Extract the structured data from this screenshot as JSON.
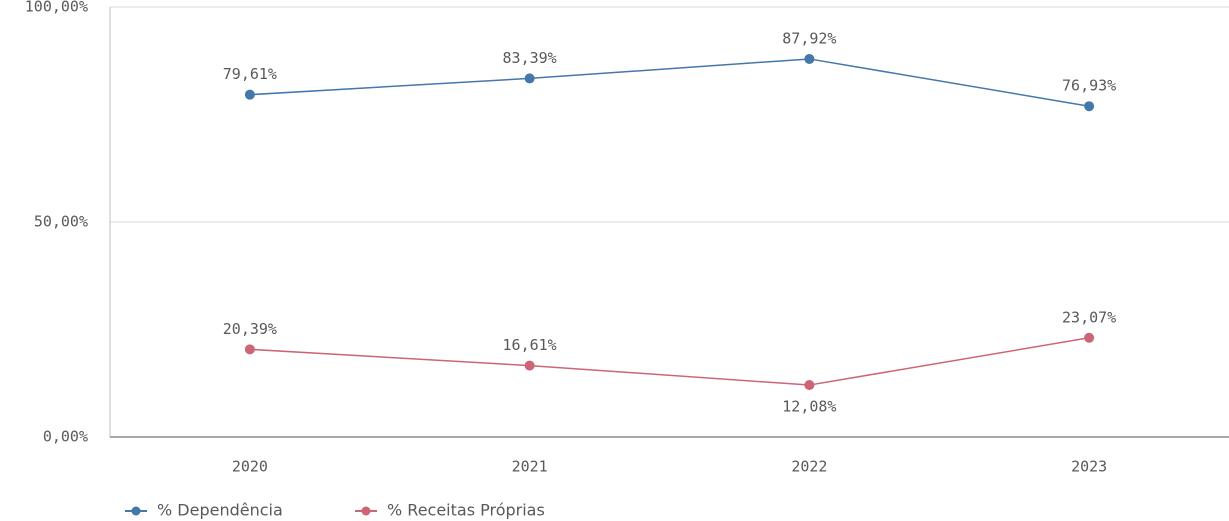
{
  "chart_data": {
    "type": "line",
    "categories": [
      "2020",
      "2021",
      "2022",
      "2023"
    ],
    "series": [
      {
        "name": "% Dependência",
        "color": "#4477aa",
        "values": [
          79.61,
          83.39,
          87.92,
          76.93
        ],
        "value_labels": [
          "79,61%",
          "83,39%",
          "87,92%",
          "76,93%"
        ]
      },
      {
        "name": "% Receitas Próprias",
        "color": "#cc6677",
        "values": [
          20.39,
          16.61,
          12.08,
          23.07
        ],
        "value_labels": [
          "20,39%",
          "16,61%",
          "12,08%",
          "23,07%"
        ]
      }
    ],
    "ylim": [
      0,
      100
    ],
    "yticks": [
      {
        "value": 0,
        "label": "0,00%"
      },
      {
        "value": 50,
        "label": "50,00%"
      },
      {
        "value": 100,
        "label": "100,00%"
      }
    ],
    "grid": true
  }
}
